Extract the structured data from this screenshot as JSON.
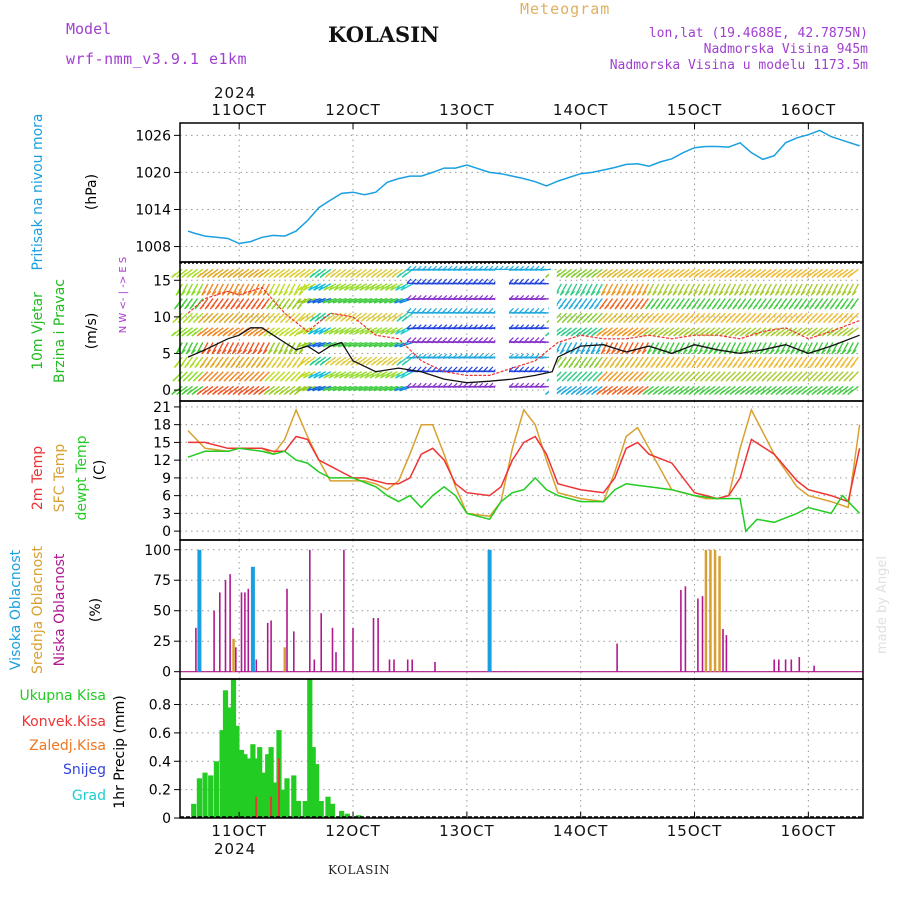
{
  "header": {
    "model_label": "Model",
    "model_name": "wrf-nmm_v3.9.1 e1km",
    "station": "KOLASIN",
    "product": "Meteogram",
    "coords": "lon,lat (19.4688E, 42.7875N)",
    "altitude": "Nadmorska Visina 945m",
    "model_altitude": "Nadmorska Visina u modelu 1173.5m",
    "year_top": "2024",
    "year_bottom": "2024",
    "footer_station": "KOLASIN",
    "credit": "made by Angel"
  },
  "colors": {
    "pressure": "#1aa0e0",
    "wind_label": "#22bb22",
    "wind_dir_label": "#aa33cc",
    "temp2m": "#ee3333",
    "sfc": "#d8a030",
    "dewpt": "#22cc22",
    "high_cloud": "#1aa0e0",
    "mid_cloud": "#d8a030",
    "low_cloud": "#b01890",
    "precip_total": "#22cc22",
    "precip_conv": "#ee3333",
    "precip_frz": "#ee7722",
    "snow": "#3344dd",
    "hail": "#22cccc",
    "title_purple": "#a040d0",
    "product_gold": "#e0b060"
  },
  "chart_data": [
    {
      "id": "pressure",
      "type": "line",
      "ylabel_1": "Pritisak na nivou mora",
      "ylabel_2": "(hPa)",
      "yticks": [
        1008,
        1014,
        1020,
        1026
      ],
      "ylim": [
        1005.5,
        1028
      ],
      "grid": true,
      "x": [
        10.55,
        10.6,
        10.7,
        10.8,
        10.9,
        11.0,
        11.1,
        11.2,
        11.3,
        11.4,
        11.5,
        11.6,
        11.7,
        11.8,
        11.9,
        12.0,
        12.1,
        12.2,
        12.3,
        12.4,
        12.5,
        12.6,
        12.7,
        12.8,
        12.9,
        13.0,
        13.1,
        13.2,
        13.3,
        13.4,
        13.5,
        13.6,
        13.7,
        13.8,
        13.9,
        14.0,
        14.1,
        14.2,
        14.3,
        14.4,
        14.5,
        14.6,
        14.7,
        14.8,
        14.9,
        15.0,
        15.1,
        15.2,
        15.3,
        15.4,
        15.5,
        15.6,
        15.7,
        15.8,
        15.9,
        16.0,
        16.1,
        16.2,
        16.3,
        16.45
      ],
      "values": [
        1010.5,
        1010.2,
        1009.7,
        1009.5,
        1009.3,
        1008.5,
        1008.8,
        1009.5,
        1009.8,
        1009.7,
        1010.5,
        1012.2,
        1014.3,
        1015.5,
        1016.6,
        1016.8,
        1016.4,
        1016.8,
        1018.4,
        1019.0,
        1019.4,
        1019.4,
        1020.0,
        1020.7,
        1020.7,
        1021.2,
        1020.6,
        1020.0,
        1019.8,
        1019.4,
        1019.0,
        1018.5,
        1017.8,
        1018.6,
        1019.2,
        1019.8,
        1020.0,
        1020.4,
        1020.8,
        1021.3,
        1021.4,
        1021.0,
        1021.7,
        1022.2,
        1023.2,
        1024.0,
        1024.2,
        1024.2,
        1024.1,
        1024.8,
        1023.2,
        1022.1,
        1022.7,
        1024.8,
        1025.6,
        1026.1,
        1026.8,
        1025.8,
        1025.2,
        1024.3
      ]
    },
    {
      "id": "wind",
      "type": "line",
      "ylabel_1": "10m Vjetar",
      "ylabel_2": "Brzina i Pravac",
      "ylabel_3": "(m/s)",
      "direction_key": "N  W <- | -> E  S",
      "yticks": [
        0,
        5,
        10,
        15
      ],
      "ylim": [
        -1.5,
        17.5
      ],
      "grid": true,
      "x": [
        10.55,
        10.7,
        10.9,
        11.0,
        11.1,
        11.2,
        11.3,
        11.4,
        11.5,
        11.6,
        11.7,
        11.8,
        11.9,
        12.0,
        12.2,
        12.4,
        12.6,
        12.8,
        13.0,
        13.2,
        13.4,
        13.6,
        13.75,
        13.8,
        14.0,
        14.2,
        14.4,
        14.6,
        14.8,
        15.0,
        15.2,
        15.4,
        15.6,
        15.8,
        16.0,
        16.2,
        16.45
      ],
      "values": [
        4.5,
        5.5,
        7.0,
        7.5,
        8.5,
        8.5,
        7.5,
        6.5,
        5.5,
        6.0,
        5.0,
        6.0,
        6.5,
        4.0,
        2.5,
        3.0,
        2.5,
        1.5,
        1.0,
        1.2,
        1.5,
        2.0,
        2.5,
        4.5,
        6.0,
        6.2,
        5.2,
        6.0,
        5.0,
        6.2,
        5.5,
        5.0,
        5.5,
        6.2,
        5.0,
        6.0,
        7.5
      ],
      "gust_x": [
        10.55,
        10.7,
        10.9,
        11.0,
        11.2,
        11.4,
        11.6,
        11.8,
        12.0,
        12.2,
        12.4,
        12.6,
        12.8,
        13.0,
        13.2,
        13.4,
        13.6,
        13.8,
        14.0,
        14.2,
        14.4,
        14.6,
        14.8,
        15.0,
        15.2,
        15.4,
        15.6,
        15.8,
        16.0,
        16.2,
        16.45
      ],
      "gust_values": [
        10.5,
        12.5,
        13.5,
        13.0,
        14.0,
        10.5,
        8.0,
        10.5,
        10.0,
        7.5,
        7.0,
        4.0,
        2.5,
        2.0,
        2.0,
        3.0,
        4.0,
        6.5,
        7.5,
        7.0,
        7.0,
        7.5,
        7.0,
        7.5,
        7.5,
        7.0,
        8.0,
        8.5,
        7.0,
        8.0,
        9.5
      ]
    },
    {
      "id": "temperature",
      "type": "line",
      "ylabel_1": "2m Temp",
      "ylabel_2": "SFC Temp",
      "ylabel_3": "dewpt Temp",
      "ylabel_4": "(C)",
      "yticks": [
        0,
        3,
        6,
        9,
        12,
        15,
        18,
        21
      ],
      "ylim": [
        -1.5,
        22
      ],
      "grid": true,
      "series": [
        {
          "name": "2m Temp",
          "x": [
            10.55,
            10.7,
            10.9,
            11.0,
            11.2,
            11.3,
            11.4,
            11.5,
            11.6,
            11.7,
            11.8,
            11.9,
            12.0,
            12.1,
            12.2,
            12.3,
            12.4,
            12.5,
            12.6,
            12.7,
            12.8,
            12.9,
            13.0,
            13.2,
            13.3,
            13.4,
            13.5,
            13.6,
            13.7,
            13.8,
            14.0,
            14.2,
            14.3,
            14.4,
            14.5,
            14.6,
            14.8,
            15.0,
            15.1,
            15.2,
            15.3,
            15.4,
            15.5,
            15.7,
            15.9,
            16.0,
            16.2,
            16.35,
            16.45
          ],
          "values": [
            15,
            15,
            14,
            14,
            14,
            13.5,
            13.5,
            16,
            15.5,
            12,
            11,
            10,
            9,
            9,
            8.5,
            8,
            8,
            9,
            13,
            14,
            12,
            8,
            6.5,
            6,
            7.5,
            12,
            15,
            16,
            13,
            8,
            7,
            6.5,
            9,
            14,
            15,
            13,
            11.5,
            6.5,
            6,
            5.5,
            6,
            9,
            15.5,
            13,
            8.5,
            7,
            6,
            5,
            14
          ]
        },
        {
          "name": "SFC Temp",
          "x": [
            10.55,
            10.7,
            10.9,
            11.0,
            11.2,
            11.3,
            11.4,
            11.5,
            11.6,
            11.7,
            11.8,
            11.9,
            12.0,
            12.1,
            12.2,
            12.3,
            12.4,
            12.5,
            12.6,
            12.7,
            12.8,
            12.9,
            13.0,
            13.2,
            13.3,
            13.4,
            13.5,
            13.6,
            13.7,
            13.8,
            14.0,
            14.2,
            14.3,
            14.4,
            14.5,
            14.6,
            14.8,
            15.0,
            15.1,
            15.2,
            15.3,
            15.4,
            15.5,
            15.7,
            15.9,
            16.0,
            16.2,
            16.35,
            16.45
          ],
          "values": [
            17,
            14,
            13.5,
            14,
            14,
            13,
            15.5,
            20.5,
            16,
            12,
            8.5,
            8.5,
            8.5,
            8.5,
            8,
            7,
            8.5,
            13,
            18,
            18,
            13,
            7.5,
            3,
            2.5,
            5,
            14,
            20.5,
            18,
            12,
            6.5,
            5.5,
            5,
            10,
            16,
            17.5,
            14,
            7,
            6,
            5.5,
            5.5,
            6,
            14,
            20.5,
            13,
            7.5,
            6,
            5,
            4,
            18
          ]
        },
        {
          "name": "dewpt Temp",
          "x": [
            10.55,
            10.7,
            10.9,
            11.0,
            11.2,
            11.3,
            11.4,
            11.5,
            11.6,
            11.7,
            11.8,
            11.9,
            12.0,
            12.2,
            12.3,
            12.4,
            12.5,
            12.6,
            12.7,
            12.8,
            12.9,
            13.0,
            13.2,
            13.3,
            13.4,
            13.5,
            13.6,
            13.7,
            13.8,
            14.0,
            14.2,
            14.3,
            14.4,
            14.6,
            14.8,
            15.0,
            15.2,
            15.4,
            15.45,
            15.55,
            15.7,
            15.9,
            16.0,
            16.2,
            16.3,
            16.45
          ],
          "values": [
            12.5,
            13.5,
            13.5,
            14,
            13.5,
            13,
            13.5,
            12,
            11.5,
            10,
            9,
            9,
            9,
            7.5,
            6,
            5,
            6,
            4,
            6,
            7.5,
            6,
            3,
            2,
            5,
            6.5,
            7,
            9,
            7,
            6,
            5,
            5,
            7,
            8,
            7.5,
            7,
            6,
            5.5,
            5.5,
            0,
            2,
            1.5,
            3,
            4,
            3,
            6,
            3
          ]
        }
      ]
    },
    {
      "id": "clouds",
      "type": "bar",
      "ylabel_1": "Visoka Oblacnost",
      "ylabel_2": "Srednja Oblacnost",
      "ylabel_3": "Niska Oblacnost",
      "ylabel_4": "(%)",
      "yticks": [
        0,
        25,
        50,
        75,
        100
      ],
      "ylim": [
        -6,
        108
      ],
      "grid": true,
      "series": [
        {
          "name": "Visoka Oblacnost",
          "x": [
            10.65,
            11.12,
            13.2
          ],
          "values": [
            100,
            86,
            100
          ]
        },
        {
          "name": "Srednja Oblacnost",
          "x": [
            10.95,
            11.4,
            15.1,
            15.14,
            15.18,
            15.22
          ],
          "values": [
            27,
            20,
            100,
            100,
            100,
            95
          ]
        },
        {
          "name": "Niska Oblacnost",
          "x": [
            10.62,
            10.78,
            10.83,
            10.88,
            10.92,
            10.97,
            11.02,
            11.05,
            11.08,
            11.15,
            11.25,
            11.28,
            11.42,
            11.48,
            11.62,
            11.66,
            11.72,
            11.82,
            11.85,
            11.92,
            12.0,
            12.18,
            12.22,
            12.32,
            12.36,
            12.48,
            12.52,
            12.72,
            14.32,
            14.88,
            14.92,
            15.03,
            15.07,
            15.25,
            15.28,
            15.7,
            15.74,
            15.8,
            15.85,
            15.92,
            16.05
          ],
          "values": [
            36,
            50,
            65,
            75,
            80,
            20,
            65,
            65,
            68,
            10,
            40,
            42,
            68,
            33,
            100,
            10,
            48,
            36,
            16,
            100,
            36,
            44,
            44,
            10,
            10,
            10,
            10,
            8,
            23,
            67,
            70,
            60,
            62,
            35,
            30,
            10,
            10,
            10,
            10,
            12,
            5
          ]
        }
      ]
    },
    {
      "id": "precip",
      "type": "bar",
      "ylabel_1": "1hr Precip",
      "ylabel_2": "(mm)",
      "legend": [
        "Ukupna Kisa",
        "Konvek.Kisa",
        "Zaledj.Kisa",
        "Snijeg",
        "Grad"
      ],
      "yticks": [
        0,
        0.2,
        0.4,
        0.6,
        0.8
      ],
      "ylim": [
        0,
        0.98
      ],
      "grid": true,
      "x": [
        10.6,
        10.65,
        10.7,
        10.75,
        10.8,
        10.85,
        10.88,
        10.92,
        10.95,
        10.98,
        11.02,
        11.05,
        11.08,
        11.12,
        11.15,
        11.18,
        11.22,
        11.25,
        11.28,
        11.32,
        11.35,
        11.38,
        11.42,
        11.48,
        11.52,
        11.58,
        11.62,
        11.65,
        11.68,
        11.72,
        11.78,
        11.82,
        11.9,
        11.95,
        12.05
      ],
      "values": [
        0.1,
        0.28,
        0.32,
        0.3,
        0.4,
        0.62,
        0.9,
        0.78,
        0.98,
        0.65,
        0.48,
        0.45,
        0.42,
        0.52,
        0.42,
        0.5,
        0.32,
        0.45,
        0.5,
        0.25,
        0.62,
        0.2,
        0.28,
        0.3,
        0.12,
        0.12,
        0.98,
        0.5,
        0.38,
        0.12,
        0.15,
        0.1,
        0.05,
        0.03,
        0.02
      ],
      "conv_values": [
        0,
        0,
        0,
        0,
        0,
        0,
        0,
        0,
        0,
        0,
        0,
        0,
        0,
        0,
        0.15,
        0,
        0,
        0,
        0.15,
        0,
        0.42,
        0,
        0,
        0,
        0,
        0,
        0,
        0,
        0,
        0,
        0,
        0,
        0,
        0,
        0
      ]
    }
  ],
  "x_axis": {
    "labels": [
      "11OCT",
      "12OCT",
      "13OCT",
      "14OCT",
      "15OCT",
      "16OCT"
    ],
    "positions": [
      11,
      12,
      13,
      14,
      15,
      16
    ],
    "range": [
      10.48,
      16.48
    ]
  }
}
